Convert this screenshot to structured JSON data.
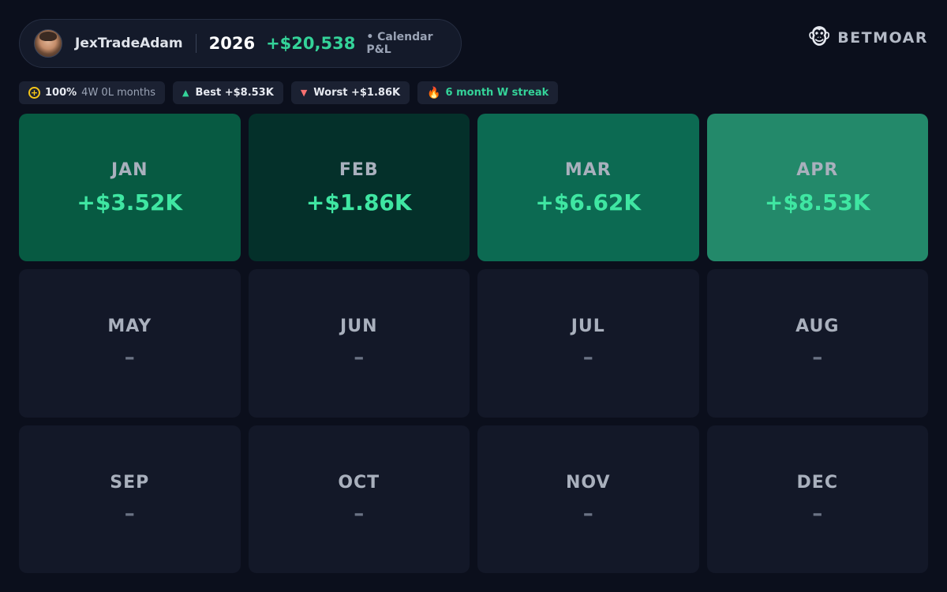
{
  "header": {
    "username": "JexTradeAdam",
    "year": "2026",
    "total": "+$20,538",
    "subtitle": "• Calendar P&L"
  },
  "brand": {
    "icon": "monkey-face-icon",
    "name": "BETMOAR"
  },
  "stats": {
    "win_rate": "100%",
    "record": "4W 0L months",
    "best": "Best +$8.53K",
    "worst": "Worst +$1.86K",
    "streak": "6 month W streak"
  },
  "colors": {
    "positive": "#34d399",
    "negative": "#f87171",
    "empty_tile": "#131828",
    "jan_tile": "#075a42",
    "feb_tile": "#04302a",
    "mar_tile": "#0c6a52",
    "apr_tile": "#23896a"
  },
  "months": [
    {
      "name": "JAN",
      "value": "+$3.52K",
      "pnl": 3520
    },
    {
      "name": "FEB",
      "value": "+$1.86K",
      "pnl": 1860
    },
    {
      "name": "MAR",
      "value": "+$6.62K",
      "pnl": 6620
    },
    {
      "name": "APR",
      "value": "+$8.53K",
      "pnl": 8530
    },
    {
      "name": "MAY",
      "value": "–"
    },
    {
      "name": "JUN",
      "value": "–"
    },
    {
      "name": "JUL",
      "value": "–"
    },
    {
      "name": "AUG",
      "value": "–"
    },
    {
      "name": "SEP",
      "value": "–"
    },
    {
      "name": "OCT",
      "value": "–"
    },
    {
      "name": "NOV",
      "value": "–"
    },
    {
      "name": "DEC",
      "value": "–"
    }
  ]
}
